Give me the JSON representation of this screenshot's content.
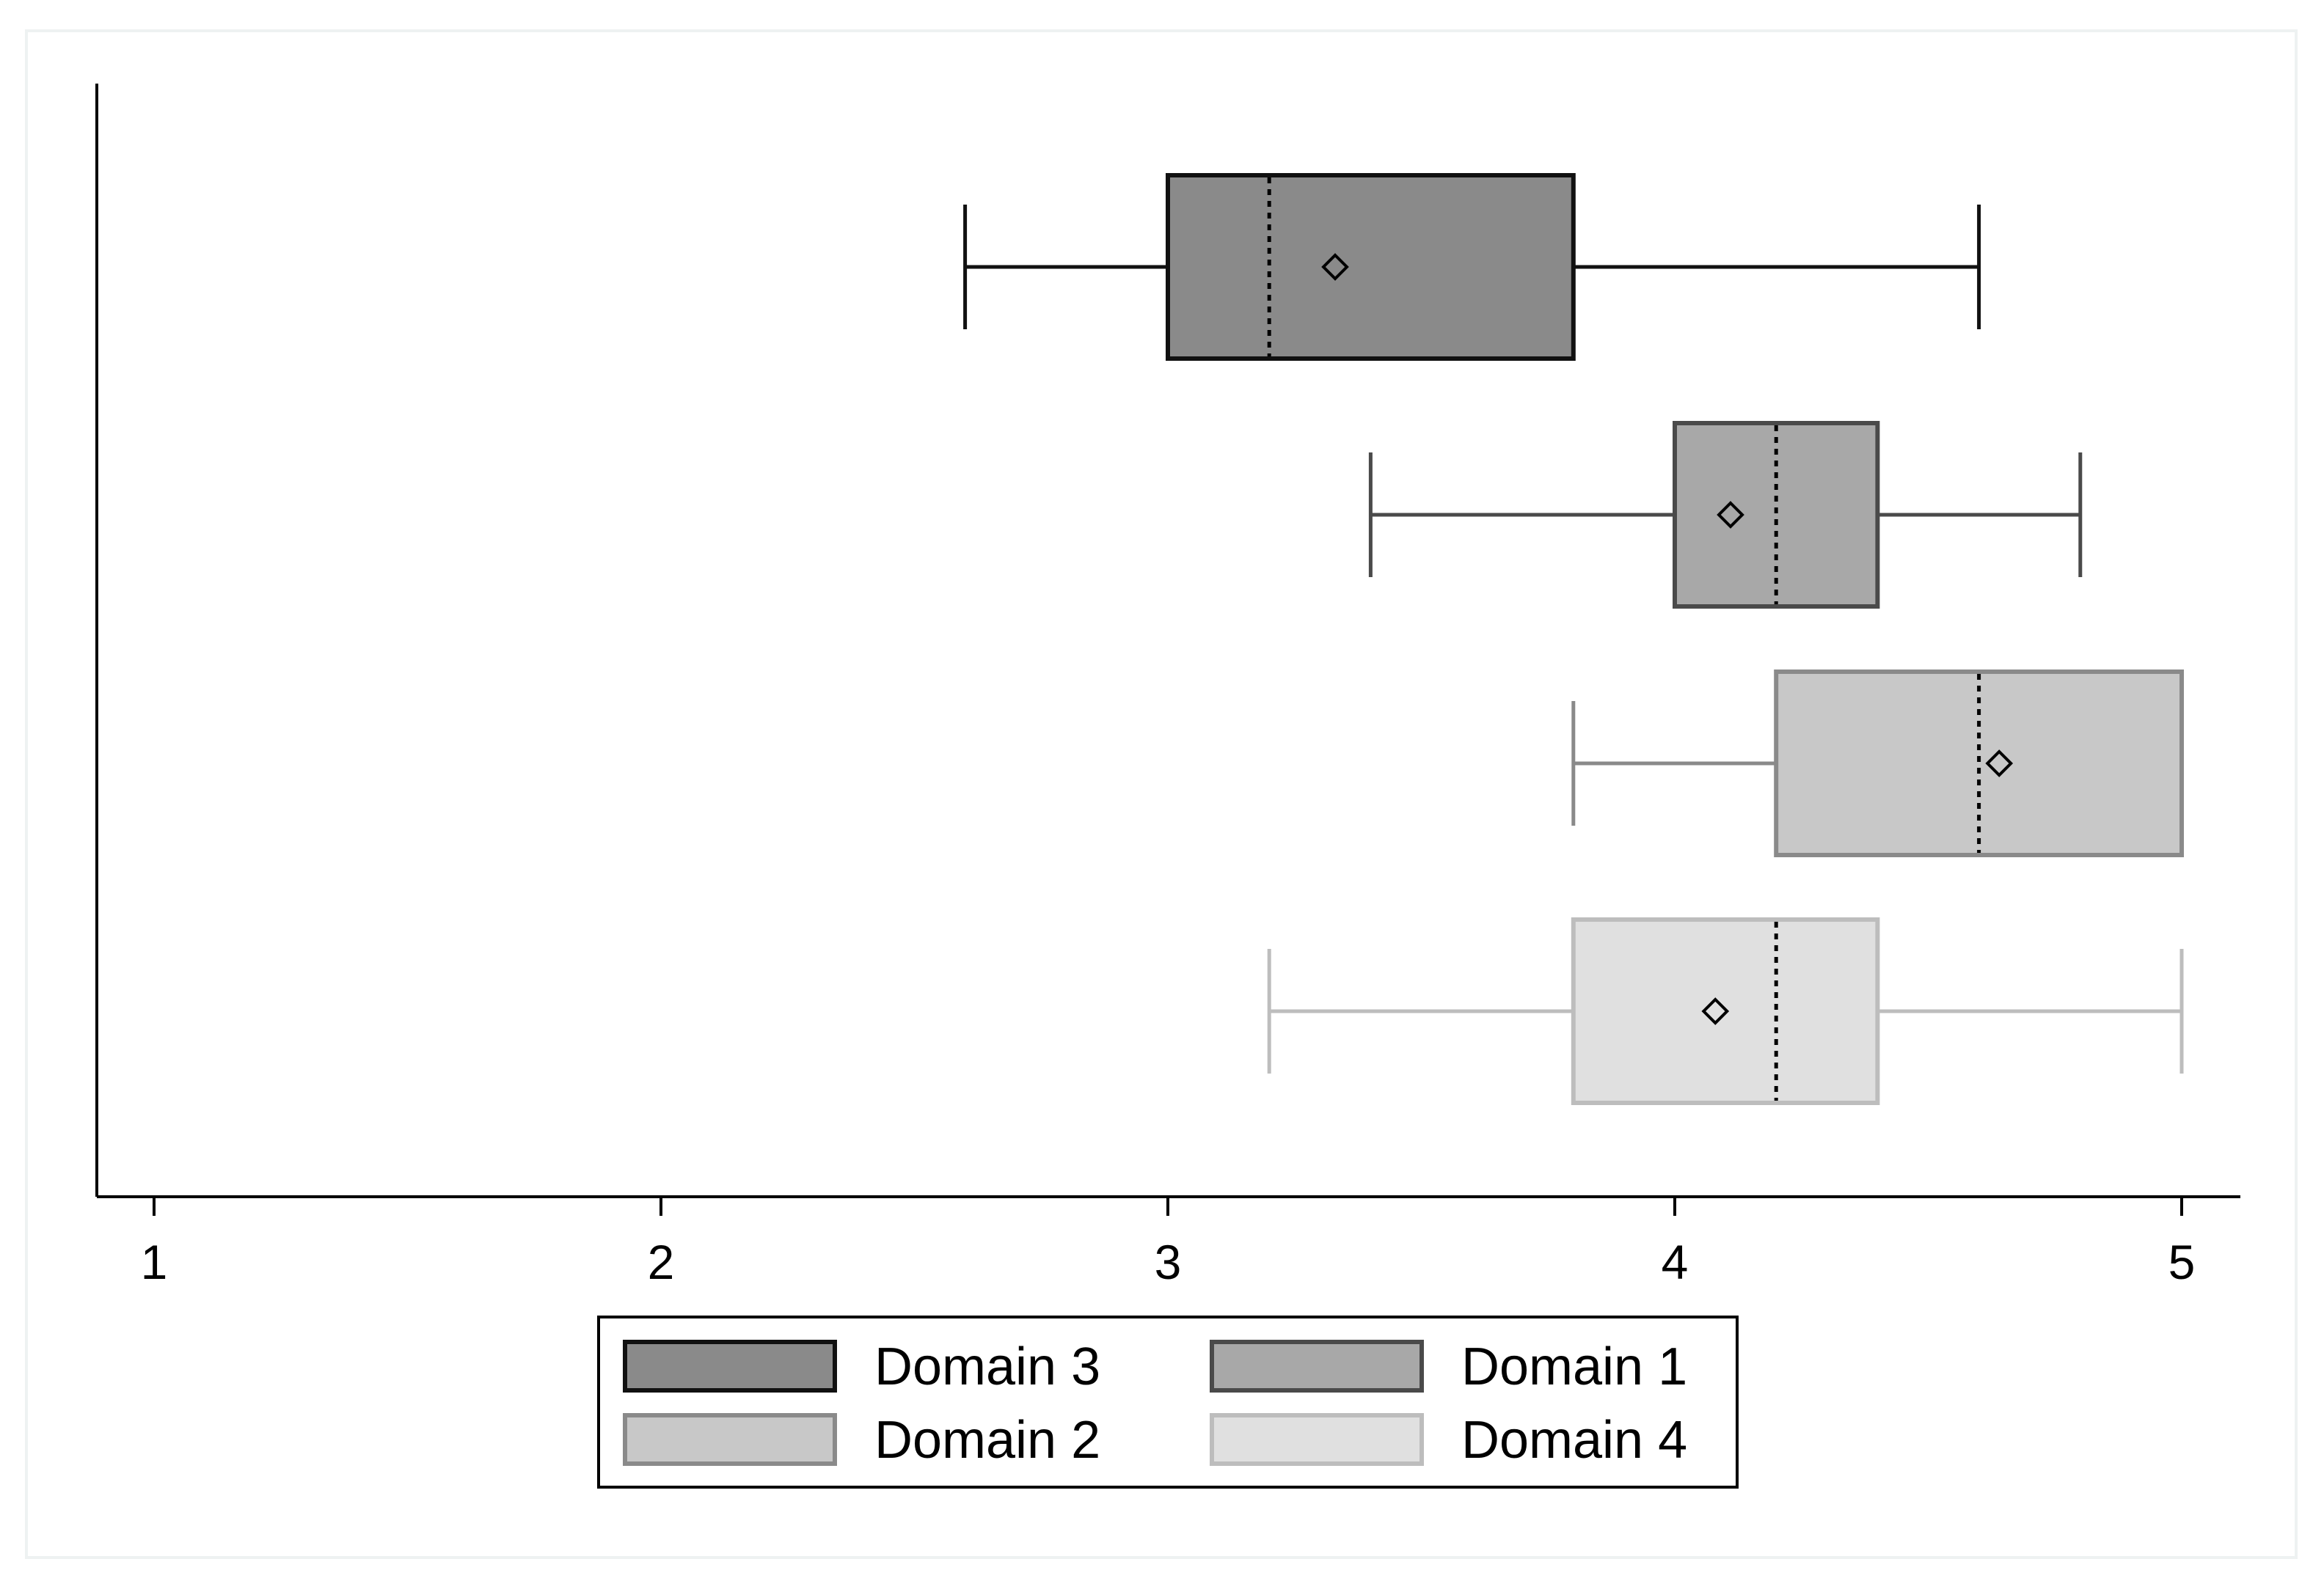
{
  "chart_data": {
    "type": "boxplot",
    "orientation": "horizontal",
    "title": "",
    "xlabel": "",
    "ylabel": "",
    "xlim": [
      0.9,
      5.12
    ],
    "x_ticks": [
      1,
      2,
      3,
      4,
      5
    ],
    "x_tick_labels": [
      "1",
      "2",
      "3",
      "4",
      "5"
    ],
    "grid": false,
    "legend_position": "bottom",
    "legend_columns": 2,
    "series": [
      {
        "name": "Domain 3",
        "whisker_low": 2.6,
        "q1": 3.0,
        "median": 3.2,
        "mean": 3.33,
        "q3": 3.8,
        "whisker_high": 4.6,
        "fill": "#8a8a8a",
        "stroke": "#111111"
      },
      {
        "name": "Domain 1",
        "whisker_low": 3.4,
        "q1": 4.0,
        "median": 4.2,
        "mean": 4.11,
        "q3": 4.4,
        "whisker_high": 4.8,
        "fill": "#a8a8a8",
        "stroke": "#4a4a4a"
      },
      {
        "name": "Domain 2",
        "whisker_low": 3.8,
        "q1": 4.2,
        "median": 4.6,
        "mean": 4.64,
        "q3": 5.0,
        "whisker_high": 5.0,
        "fill": "#c8c8c8",
        "stroke": "#8a8a8a"
      },
      {
        "name": "Domain 4",
        "whisker_low": 3.2,
        "q1": 3.8,
        "median": 4.2,
        "mean": 4.08,
        "q3": 4.4,
        "whisker_high": 5.0,
        "fill": "#e0e0e0",
        "stroke": "#bdbdbd"
      }
    ],
    "legend_order": [
      "Domain 3",
      "Domain 1",
      "Domain 2",
      "Domain 4"
    ]
  }
}
